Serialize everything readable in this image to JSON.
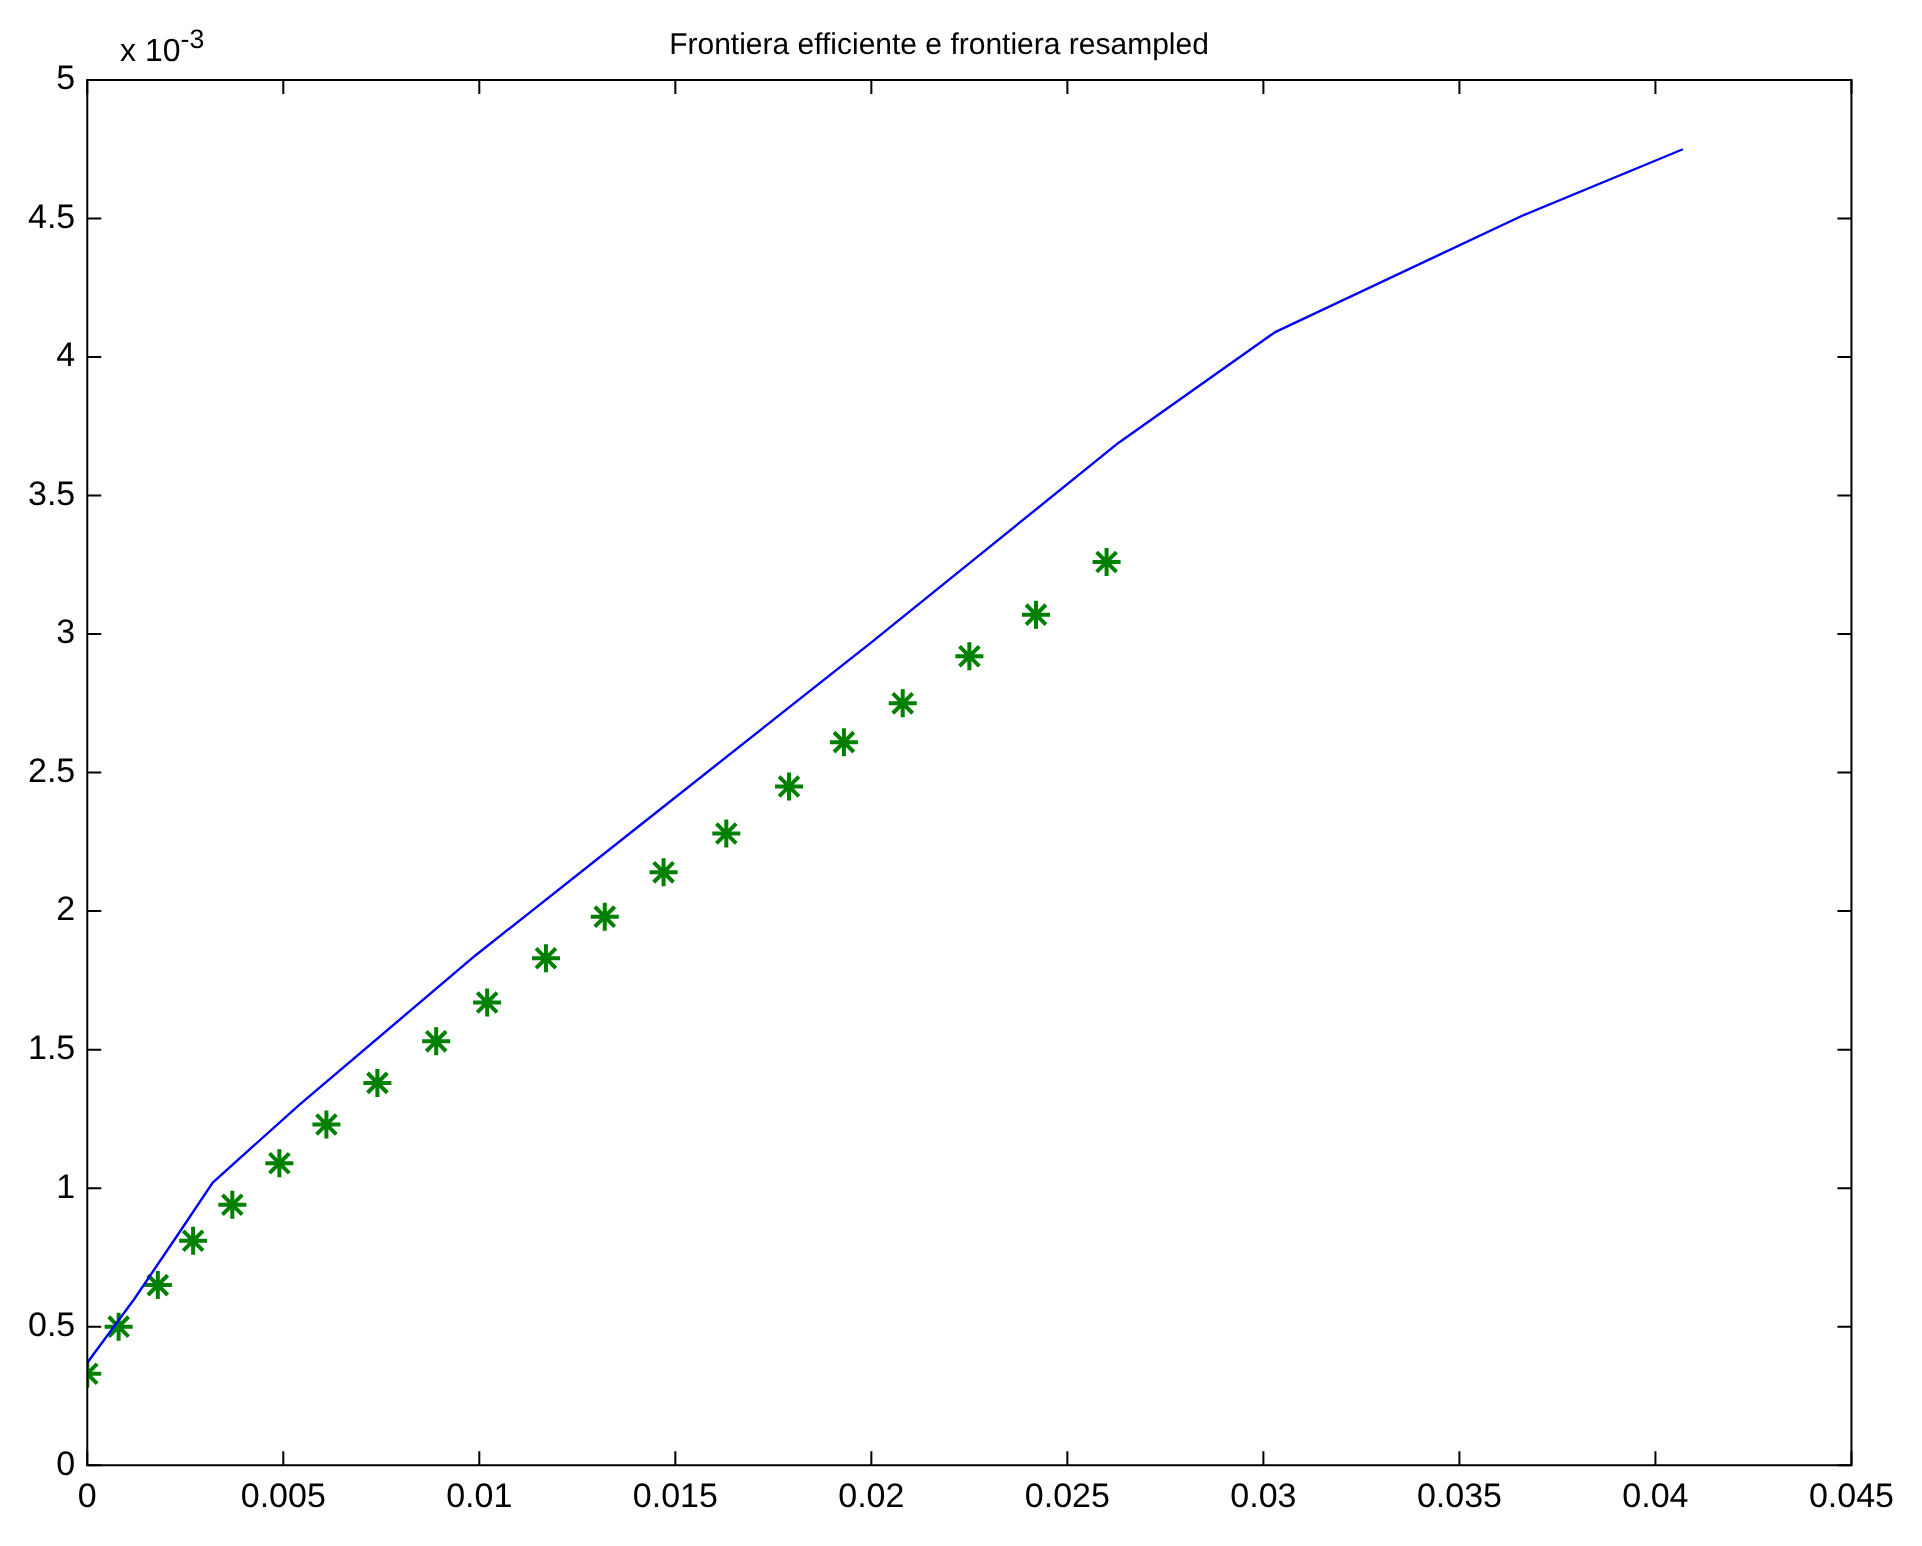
{
  "chart_data": {
    "type": "line",
    "title": "Frontiera efficiente e frontiera resampled",
    "annotations": [
      "x 10$^{-3}$"
    ],
    "xlim": [
      0,
      0.045
    ],
    "xticks": [
      0,
      0.005,
      0.01,
      0.015,
      0.02,
      0.025,
      0.03,
      0.035,
      0.04,
      0.045
    ],
    "ylim": [
      0,
      5
    ],
    "yticks": [
      0,
      0.5,
      1,
      1.5,
      2,
      2.5,
      3,
      3.5,
      4,
      4.5,
      5
    ],
    "grid": false,
    "legend": false,
    "series": [
      {
        "type": "line",
        "color": "#0000ff",
        "marker": "none",
        "x": [
          0,
          0.0012,
          0.0023,
          0.0032,
          0.0054,
          0.0099,
          0.0141,
          0.02,
          0.0263,
          0.0303,
          0.0366,
          0.0407
        ],
        "values": [
          0.37,
          0.6,
          0.83,
          1.02,
          1.3,
          1.84,
          2.31,
          2.97,
          3.69,
          4.09,
          4.51,
          4.75
        ]
      },
      {
        "type": "scatter",
        "color": "#008000",
        "marker": "cross",
        "x": [
          0,
          0.0008,
          0.0018,
          0.0027,
          0.0037,
          0.0049,
          0.0061,
          0.0074,
          0.0089,
          0.0102,
          0.0117,
          0.0132,
          0.0147,
          0.0163,
          0.0179,
          0.0193,
          0.0208,
          0.0225,
          0.0242,
          0.026
        ],
        "values": [
          0.33,
          0.5,
          0.65,
          0.81,
          0.94,
          1.09,
          1.23,
          1.38,
          1.53,
          1.67,
          1.83,
          1.98,
          2.14,
          2.28,
          2.45,
          2.61,
          2.75,
          2.92,
          3.07,
          3.26
        ]
      }
    ]
  }
}
